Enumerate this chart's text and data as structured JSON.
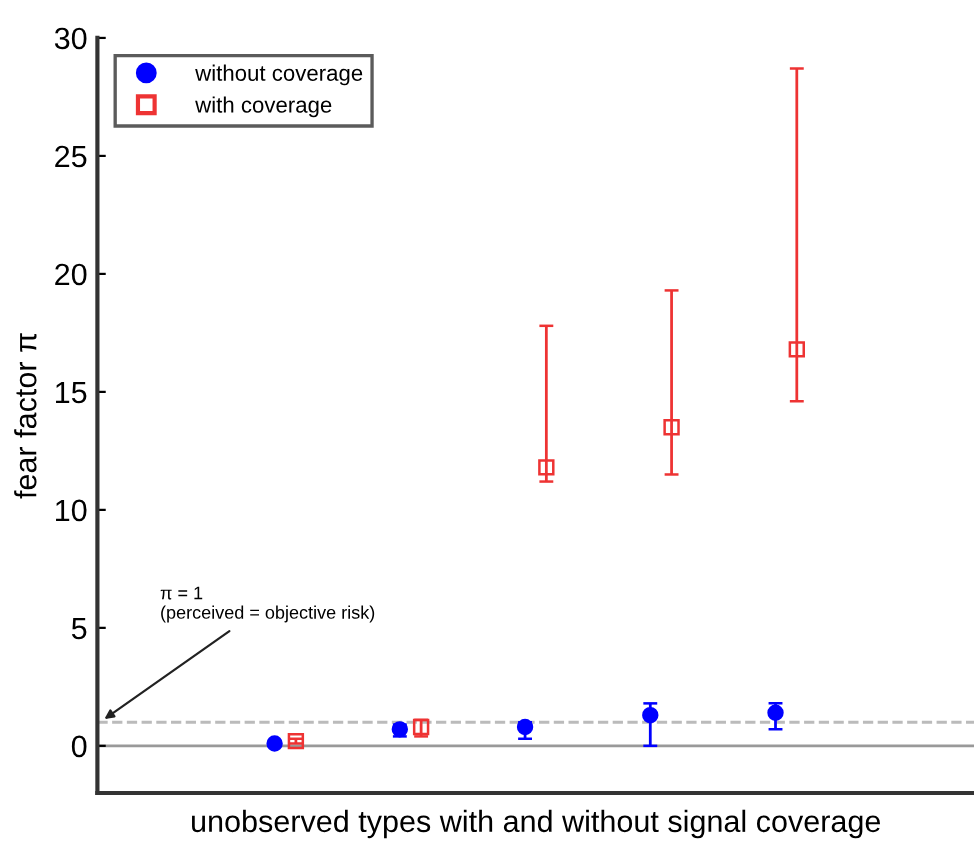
{
  "chart_data": {
    "type": "scatter",
    "xlabel": "unobserved types with and without signal coverage",
    "ylabel": "fear factor π",
    "categories": [
      null,
      null,
      null,
      null,
      null,
      null,
      null
    ],
    "series": [
      {
        "name": "without coverage",
        "color": "#0000ff",
        "marker": "circle",
        "values": [
          null,
          0.1,
          0.7,
          0.8,
          1.3,
          1.4,
          null
        ],
        "errors": [
          null,
          null,
          [
            0.4,
            0.9
          ],
          [
            0.3,
            1.0
          ],
          [
            0,
            1.8
          ],
          [
            0.7,
            1.8
          ],
          null
        ]
      },
      {
        "name": "with coverage",
        "color": "#ee3333",
        "marker": "square",
        "values": [
          null,
          0.2,
          0.8,
          11.8,
          13.5,
          16.8,
          null
        ],
        "errors": [
          null,
          [
            0.1,
            0.3
          ],
          [
            0.4,
            1.1
          ],
          [
            11.2,
            17.8
          ],
          [
            11.5,
            19.3
          ],
          [
            14.6,
            28.7
          ],
          null
        ]
      }
    ],
    "ylim": [
      -2,
      30
    ],
    "yticks": [
      0,
      5,
      10,
      15,
      20,
      25,
      30
    ],
    "ref_lines": [
      {
        "axis": "y",
        "value": 0,
        "color": "#999999",
        "line_style": "solid"
      },
      {
        "axis": "y",
        "value": 1,
        "color": "#bbbbbb",
        "line_style": "dashed"
      }
    ],
    "annotations": [
      "π = 1\n(perceived = objective risk)"
    ],
    "legend": "top left",
    "grid": false,
    "tick_labels": "y"
  }
}
